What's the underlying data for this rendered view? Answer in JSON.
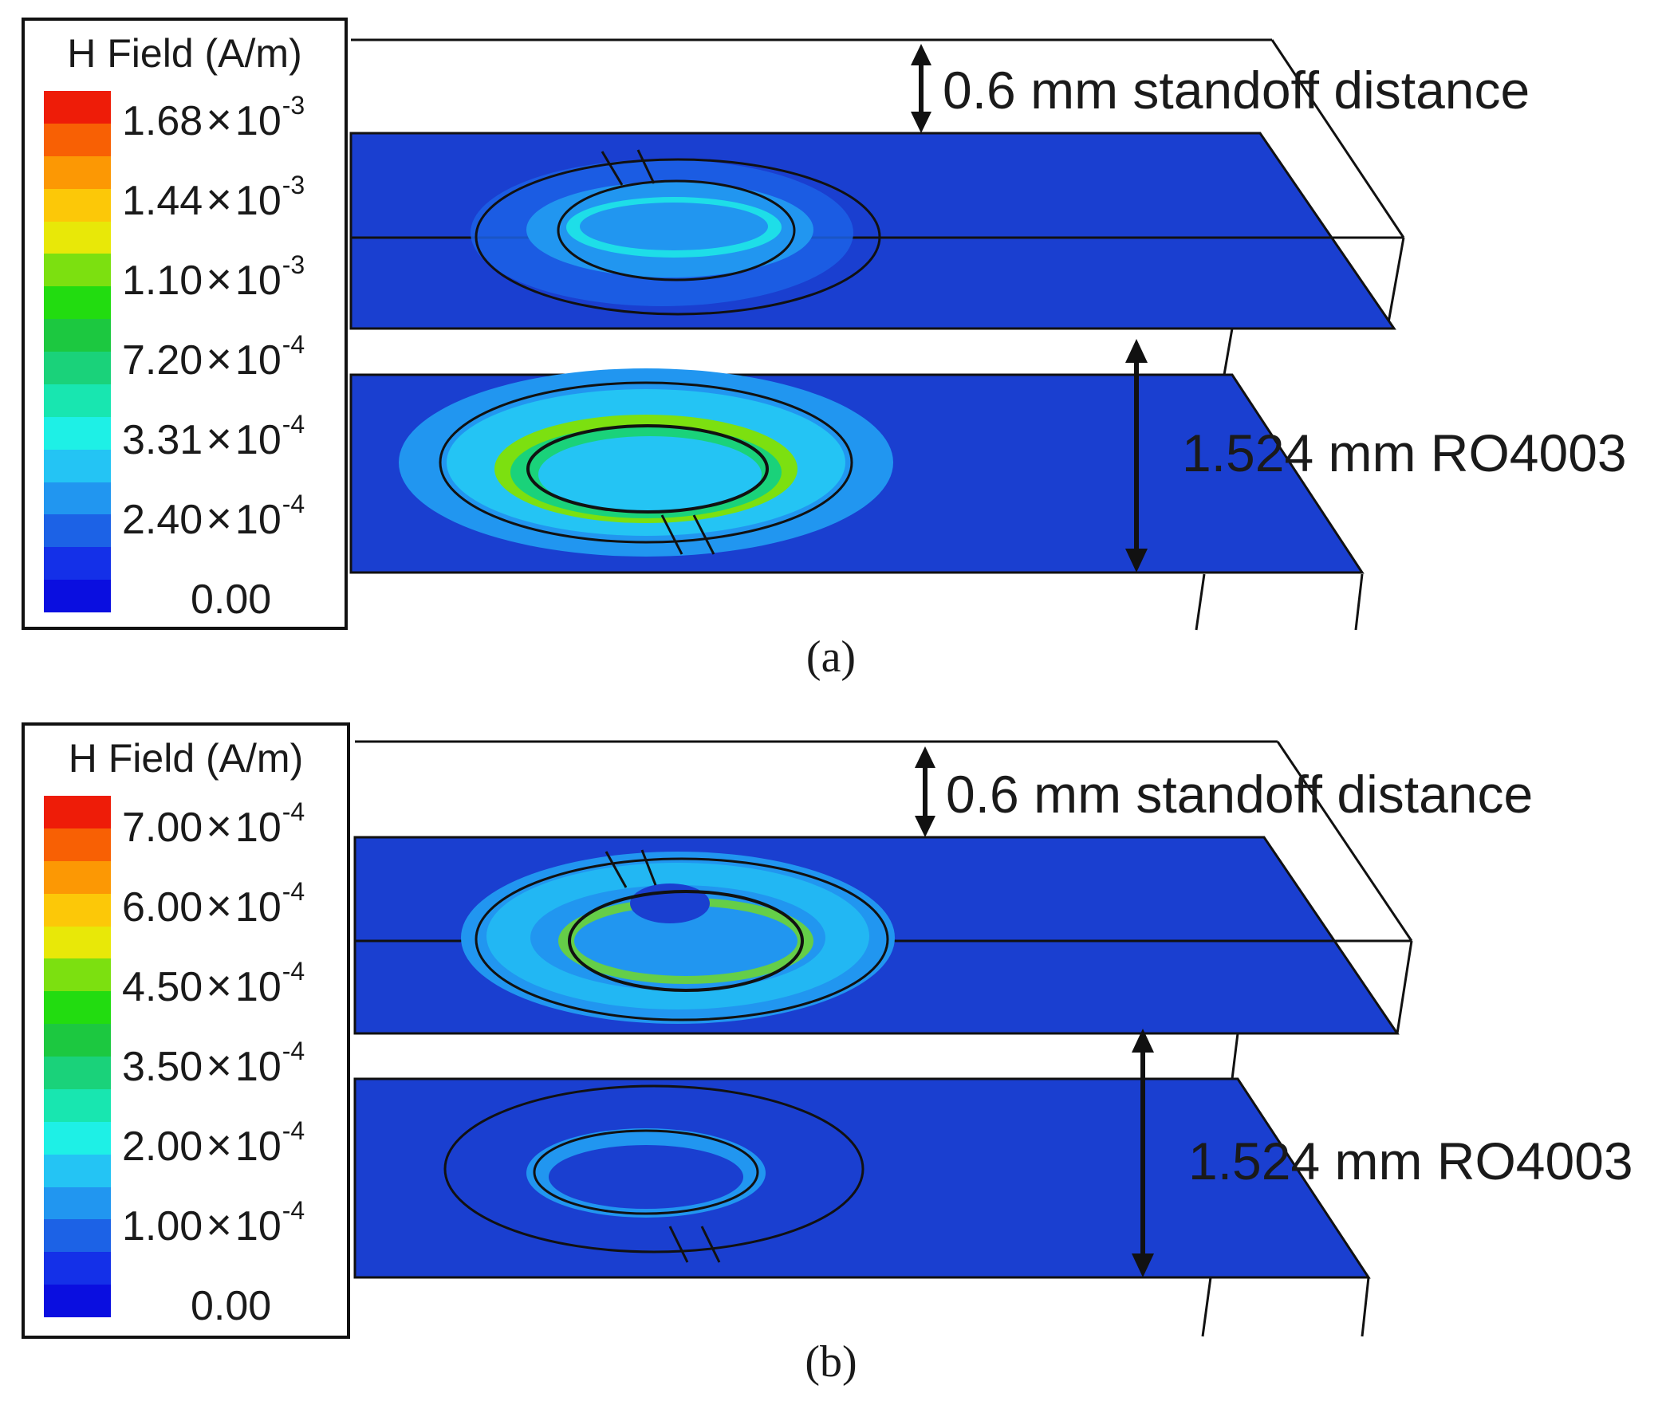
{
  "colors": {
    "plane": "#1a3fd0",
    "outline": "#111111",
    "colormap": [
      "#0a0ee0",
      "#1430e8",
      "#1c62e6",
      "#2196f0",
      "#24c4f4",
      "#1ef0e6",
      "#18e6b0",
      "#1ad27a",
      "#1cc840",
      "#22dc10",
      "#7ce010",
      "#e8e808",
      "#fcc808",
      "#fc9804",
      "#f86004",
      "#ee1c08"
    ]
  },
  "panels": [
    {
      "id": "a",
      "legend_title": "H Field (A/m)",
      "ticks": [
        {
          "mant": "1.68",
          "times": "×",
          "base": "10",
          "exp": "-3"
        },
        {
          "mant": "1.44",
          "times": "×",
          "base": "10",
          "exp": "-3"
        },
        {
          "mant": "1.10",
          "times": "×",
          "base": "10",
          "exp": "-3"
        },
        {
          "mant": "7.20",
          "times": "×",
          "base": "10",
          "exp": "-4"
        },
        {
          "mant": "3.31",
          "times": "×",
          "base": "10",
          "exp": "-4"
        },
        {
          "mant": "2.40",
          "times": "×",
          "base": "10",
          "exp": "-4"
        },
        {
          "mant": "0.00",
          "times": "",
          "base": "",
          "exp": ""
        }
      ],
      "standoff_label": "0.6 mm standoff distance",
      "substrate_label": "1.524 mm RO4003",
      "caption": "(a)"
    },
    {
      "id": "b",
      "legend_title": "H Field (A/m)",
      "ticks": [
        {
          "mant": "7.00",
          "times": "×",
          "base": "10",
          "exp": "-4"
        },
        {
          "mant": "6.00",
          "times": "×",
          "base": "10",
          "exp": "-4"
        },
        {
          "mant": "4.50",
          "times": "×",
          "base": "10",
          "exp": "-4"
        },
        {
          "mant": "3.50",
          "times": "×",
          "base": "10",
          "exp": "-4"
        },
        {
          "mant": "2.00",
          "times": "×",
          "base": "10",
          "exp": "-4"
        },
        {
          "mant": "1.00",
          "times": "×",
          "base": "10",
          "exp": "-4"
        },
        {
          "mant": "0.00",
          "times": "",
          "base": "",
          "exp": ""
        }
      ],
      "standoff_label": "0.6 mm standoff distance",
      "substrate_label": "1.524 mm RO4003",
      "caption": "(b)"
    }
  ]
}
